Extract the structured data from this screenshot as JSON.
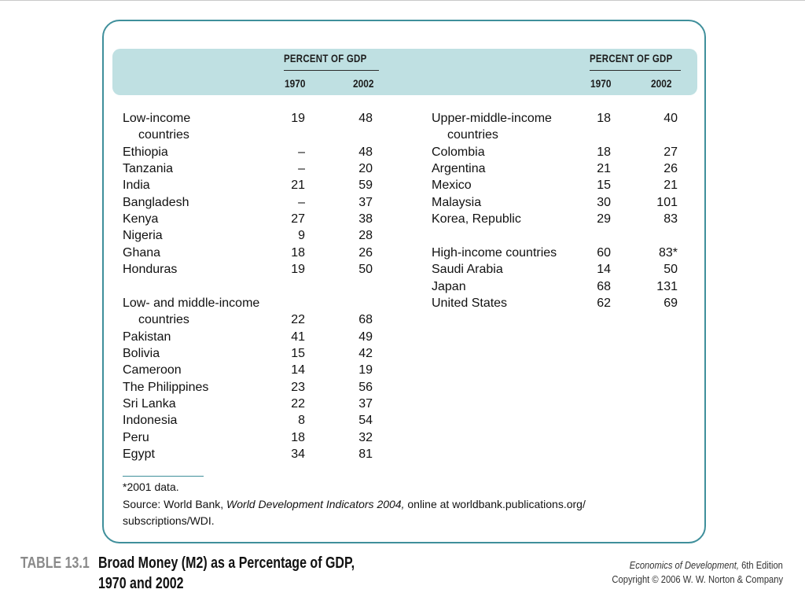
{
  "header": {
    "group_title": "PERCENT OF GDP",
    "year1": "1970",
    "year2": "2002"
  },
  "left_rows": [
    {
      "label": "Low-income",
      "v1970": "19",
      "v2002": "48"
    },
    {
      "label": "countries",
      "v1970": "",
      "v2002": "",
      "indent": true
    },
    {
      "label": "Ethiopia",
      "v1970": "–",
      "v2002": "48"
    },
    {
      "label": "Tanzania",
      "v1970": "–",
      "v2002": "20"
    },
    {
      "label": "India",
      "v1970": "21",
      "v2002": "59"
    },
    {
      "label": "Bangladesh",
      "v1970": "–",
      "v2002": "37"
    },
    {
      "label": "Kenya",
      "v1970": "27",
      "v2002": "38"
    },
    {
      "label": "Nigeria",
      "v1970": "9",
      "v2002": "28"
    },
    {
      "label": "Ghana",
      "v1970": "18",
      "v2002": "26"
    },
    {
      "label": "Honduras",
      "v1970": "19",
      "v2002": "50"
    },
    {
      "label": "Low- and middle-income",
      "v1970": "",
      "v2002": "",
      "gap": true
    },
    {
      "label": "countries",
      "v1970": "22",
      "v2002": "68",
      "indent": true
    },
    {
      "label": "Pakistan",
      "v1970": "41",
      "v2002": "49"
    },
    {
      "label": "Bolivia",
      "v1970": "15",
      "v2002": "42"
    },
    {
      "label": "Cameroon",
      "v1970": "14",
      "v2002": "19"
    },
    {
      "label": "The Philippines",
      "v1970": "23",
      "v2002": "56"
    },
    {
      "label": "Sri Lanka",
      "v1970": "22",
      "v2002": "37"
    },
    {
      "label": "Indonesia",
      "v1970": "8",
      "v2002": "54"
    },
    {
      "label": "Peru",
      "v1970": "18",
      "v2002": "32"
    },
    {
      "label": "Egypt",
      "v1970": "34",
      "v2002": "81"
    }
  ],
  "right_rows": [
    {
      "label": "Upper-middle-income",
      "v1970": "18",
      "v2002": "40"
    },
    {
      "label": "countries",
      "v1970": "",
      "v2002": "",
      "indent": true
    },
    {
      "label": "Colombia",
      "v1970": "18",
      "v2002": "27"
    },
    {
      "label": "Argentina",
      "v1970": "21",
      "v2002": "26"
    },
    {
      "label": "Mexico",
      "v1970": "15",
      "v2002": "21"
    },
    {
      "label": "Malaysia",
      "v1970": "30",
      "v2002": "101"
    },
    {
      "label": "Korea, Republic",
      "v1970": "29",
      "v2002": "83"
    },
    {
      "label": "High-income countries",
      "v1970": "60",
      "v2002": "83*",
      "gap": true
    },
    {
      "label": "Saudi Arabia",
      "v1970": "14",
      "v2002": "50"
    },
    {
      "label": "Japan",
      "v1970": "68",
      "v2002": "131"
    },
    {
      "label": "United States",
      "v1970": "62",
      "v2002": "69"
    }
  ],
  "notes": {
    "footnote": "*2001 data.",
    "source_prefix": "Source: World Bank, ",
    "source_italic": "World Development Indicators 2004,",
    "source_suffix": " online at worldbank.publications.org/",
    "source_line2": "subscriptions/WDI."
  },
  "caption": {
    "label": "TABLE 13.1",
    "title_line1": "Broad Money (M2) as a Percentage of GDP,",
    "title_line2": "1970 and 2002"
  },
  "credit": {
    "book_italic": "Economics of Development,",
    "edition": " 6th Edition",
    "copyright": "Copyright © 2006 W. W. Norton & Company"
  }
}
